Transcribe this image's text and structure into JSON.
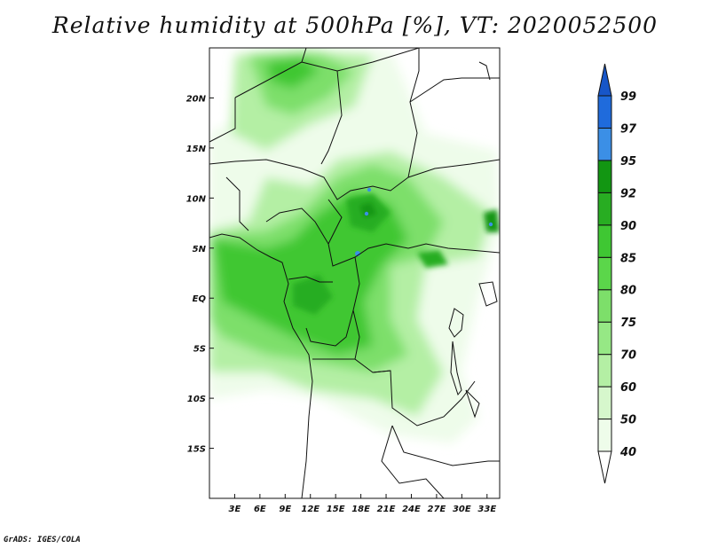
{
  "title": "Relative humidity at 500hPa [%], VT: 2020052500",
  "credit": "GrADS: IGES/COLA",
  "map": {
    "lon_range": [
      0,
      34.5
    ],
    "lat_range": [
      -20,
      25
    ],
    "lon_ticks": [
      {
        "value": 3,
        "label": "3E"
      },
      {
        "value": 6,
        "label": "6E"
      },
      {
        "value": 9,
        "label": "9E"
      },
      {
        "value": 12,
        "label": "12E"
      },
      {
        "value": 15,
        "label": "15E"
      },
      {
        "value": 18,
        "label": "18E"
      },
      {
        "value": 21,
        "label": "21E"
      },
      {
        "value": 24,
        "label": "24E"
      },
      {
        "value": 27,
        "label": "27E"
      },
      {
        "value": 30,
        "label": "30E"
      },
      {
        "value": 33,
        "label": "33E"
      }
    ],
    "lat_ticks": [
      {
        "value": 20,
        "label": "20N"
      },
      {
        "value": 15,
        "label": "15N"
      },
      {
        "value": 10,
        "label": "10N"
      },
      {
        "value": 5,
        "label": "5N"
      },
      {
        "value": 0,
        "label": "EQ"
      },
      {
        "value": -5,
        "label": "5S"
      },
      {
        "value": -10,
        "label": "10S"
      },
      {
        "value": -15,
        "label": "15S"
      }
    ]
  },
  "colorbar": {
    "levels": [
      {
        "label": "40",
        "color": "#eefcea"
      },
      {
        "label": "50",
        "color": "#d6f7cc"
      },
      {
        "label": "60",
        "color": "#b4efa4"
      },
      {
        "label": "70",
        "color": "#96e885"
      },
      {
        "label": "75",
        "color": "#7ddf6a"
      },
      {
        "label": "80",
        "color": "#5bd64a"
      },
      {
        "label": "85",
        "color": "#3fc733"
      },
      {
        "label": "90",
        "color": "#28ad22"
      },
      {
        "label": "92",
        "color": "#129612"
      },
      {
        "label": "95",
        "color": "#3b8fe6"
      },
      {
        "label": "97",
        "color": "#1f6bdc"
      },
      {
        "label": "99",
        "color": "#1756c8"
      }
    ],
    "below_color": "#ffffff"
  }
}
